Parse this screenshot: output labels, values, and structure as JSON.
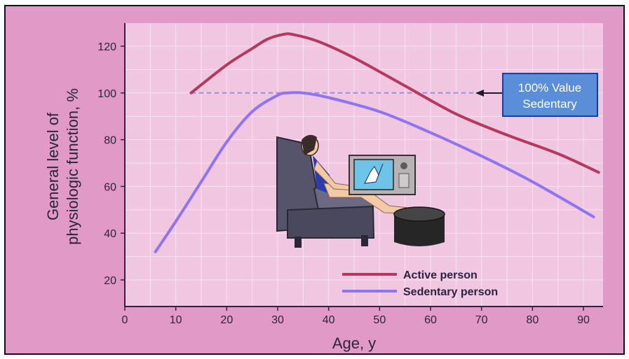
{
  "colors": {
    "background": "#e19ac7",
    "plot_bg": "#f1c6e0",
    "grid": "#f8e4f0",
    "active": "#b5385f",
    "sedentary": "#8e74f2",
    "dashed": "#a58ad8",
    "callout_bg": "#5b8ed8",
    "callout_border": "#1c3d9a",
    "text": "#2b2340"
  },
  "icons": {
    "illustration": "person-in-armchair-watching-tv-icon"
  },
  "callout": {
    "line1": "100% Value",
    "line2": "Sedentary"
  },
  "chart_data": {
    "type": "line",
    "title": "",
    "xlabel": "Age, y",
    "ylabel": "General level of physiologic function, %",
    "xlim": [
      0,
      94
    ],
    "ylim": [
      10,
      130
    ],
    "x_ticks": [
      0,
      10,
      20,
      30,
      40,
      50,
      60,
      70,
      80,
      90
    ],
    "y_ticks": [
      20,
      40,
      60,
      80,
      100,
      120
    ],
    "grid": true,
    "legend": "bottom-center",
    "reference_line": {
      "y": 100,
      "x_start": 13,
      "x_end": 70,
      "style": "dashed"
    },
    "series": [
      {
        "name": "Active person",
        "color": "#b5385f",
        "x": [
          13,
          20,
          25,
          28,
          31,
          33,
          38,
          45,
          55,
          65,
          75,
          85,
          93
        ],
        "y": [
          100,
          112,
          119,
          123,
          125,
          125,
          122,
          115,
          103,
          91,
          82,
          74,
          66
        ]
      },
      {
        "name": "Sedentary person",
        "color": "#8e74f2",
        "x": [
          6,
          10,
          15,
          20,
          25,
          30,
          32,
          35,
          40,
          50,
          60,
          70,
          80,
          92
        ],
        "y": [
          32,
          45,
          62,
          79,
          92,
          99,
          100,
          100,
          98,
          92,
          83,
          73,
          62,
          47
        ]
      }
    ]
  }
}
